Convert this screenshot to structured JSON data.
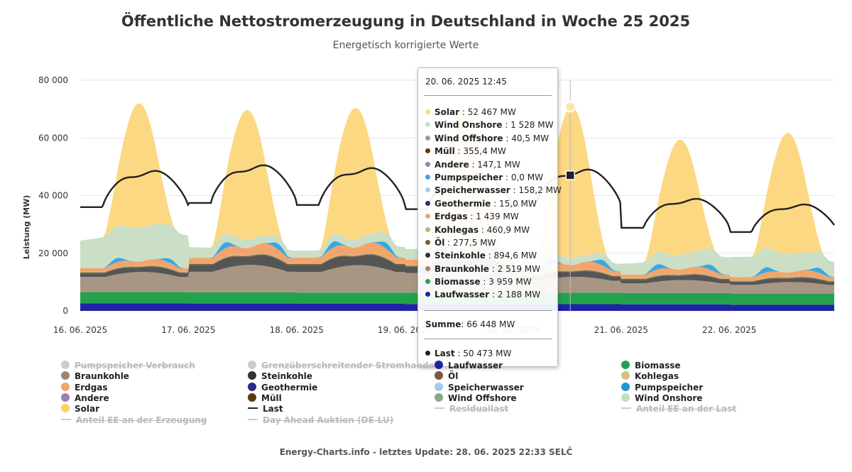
{
  "chart_data": {
    "type": "area",
    "title": "Öffentliche Nettostromerzeugung in Deutschland in Woche 25 2025",
    "subtitle": "Energetisch korrigierte Werte",
    "ylabel": "Leistung (MW)",
    "xlabel": "",
    "ylim": [
      0,
      80000
    ],
    "y_ticks": [
      0,
      20000,
      40000,
      60000,
      80000
    ],
    "y_tick_labels": [
      "0",
      "20 000",
      "40 000",
      "60 000",
      "80 000"
    ],
    "x_range_days": [
      0,
      6.97
    ],
    "x_tick_labels": [
      "16. 06. 2025",
      "17. 06. 2025",
      "18. 06. 2025",
      "19. 06. 2025",
      "20. 06. 2025",
      "21. 06. 2025",
      "22. 06. 2025"
    ],
    "grid": true,
    "legend_position": "bottom",
    "series": [
      {
        "name": "Laufwasser",
        "color": "#1f22a6",
        "values": [
          2600,
          2550,
          2450,
          2400,
          2350,
          2300,
          2150
        ]
      },
      {
        "name": "Biomasse",
        "color": "#23a24d",
        "values": [
          3900,
          3900,
          3900,
          3950,
          3950,
          3900,
          3850
        ]
      },
      {
        "name": "Braunkohle",
        "color": "#a89684",
        "values": [
          7000,
          9500,
          9500,
          9000,
          5500,
          4500,
          4000
        ]
      },
      {
        "name": "Steinkohle",
        "color": "#555555",
        "values": [
          2300,
          4300,
          4500,
          4000,
          2500,
          2200,
          1800
        ]
      },
      {
        "name": "Öl",
        "color": "#7a5a3a",
        "values": [
          300,
          300,
          300,
          300,
          300,
          300,
          300
        ]
      },
      {
        "name": "Kohlegas",
        "color": "#c8b080",
        "values": [
          450,
          450,
          450,
          450,
          450,
          450,
          450
        ]
      },
      {
        "name": "Erdgas",
        "color": "#f4a46a",
        "values": [
          2500,
          4200,
          4500,
          4200,
          3200,
          2700,
          2500
        ]
      },
      {
        "name": "Pumpspeicher",
        "color": "#3aa8e0",
        "values": [
          2500,
          3500,
          3500,
          3500,
          3300,
          3000,
          3000
        ]
      },
      {
        "name": "Wind Onshore",
        "color": "#cadfc6",
        "values": [
          12000,
          4000,
          4000,
          4000,
          4000,
          6000,
          7000
        ]
      },
      {
        "name": "Solar",
        "color": "#fdd882",
        "values": [
          43000,
          45000,
          45500,
          45000,
          52467,
          40000,
          42000
        ]
      }
    ],
    "last": {
      "name": "Last",
      "color": "#222222",
      "values": [
        50000,
        52000,
        51000,
        49000,
        50473,
        40000,
        38000
      ]
    },
    "tooltip": {
      "timestamp": "20. 06. 2025 12:45",
      "rows": [
        {
          "name": "Solar",
          "value": "52 467 MW",
          "color": "#fdd882"
        },
        {
          "name": "Wind Onshore",
          "value": "1 528 MW",
          "color": "#cadfc6"
        },
        {
          "name": "Wind Offshore",
          "value": "40,5 MW",
          "color": "#8aa882"
        },
        {
          "name": "Müll",
          "value": "355,4 MW",
          "color": "#5a3a14"
        },
        {
          "name": "Andere",
          "value": "147,1 MW",
          "color": "#9b7fb8"
        },
        {
          "name": "Pumpspeicher",
          "value": "0,0 MW",
          "color": "#3aa8e0"
        },
        {
          "name": "Speicherwasser",
          "value": "158,2 MW",
          "color": "#a8c8f0"
        },
        {
          "name": "Geothermie",
          "value": "15,0 MW",
          "color": "#2a2a88"
        },
        {
          "name": "Erdgas",
          "value": "1 439 MW",
          "color": "#f4a46a"
        },
        {
          "name": "Kohlegas",
          "value": "460,9 MW",
          "color": "#c8b080"
        },
        {
          "name": "Öl",
          "value": "277,5 MW",
          "color": "#7a5a3a"
        },
        {
          "name": "Steinkohle",
          "value": "894,6 MW",
          "color": "#333333"
        },
        {
          "name": "Braunkohle",
          "value": "2 519 MW",
          "color": "#a08470"
        },
        {
          "name": "Biomasse",
          "value": "3 959 MW",
          "color": "#23a24d"
        },
        {
          "name": "Laufwasser",
          "value": "2 188 MW",
          "color": "#1f22a6"
        }
      ],
      "sum_label": "Summe",
      "sum_value": "66 448 MW",
      "last_label": "Last",
      "last_value": "50 473 MW",
      "last_color": "#222222"
    },
    "legend": [
      {
        "name": "Pumpspeicher Verbrauch",
        "kind": "dot",
        "color": "#cccccc",
        "off": true
      },
      {
        "name": "Grenzüberschreitender Stromhandel",
        "kind": "dot",
        "color": "#cccccc",
        "off": true
      },
      {
        "name": "Laufwasser",
        "kind": "dot",
        "color": "#1f22a6",
        "off": false
      },
      {
        "name": "Biomasse",
        "kind": "dot",
        "color": "#23a24d",
        "off": false
      },
      {
        "name": "Braunkohle",
        "kind": "dot",
        "color": "#a08470",
        "off": false
      },
      {
        "name": "Steinkohle",
        "kind": "dot",
        "color": "#333333",
        "off": false
      },
      {
        "name": "Öl",
        "kind": "dot",
        "color": "#7a5a3a",
        "off": false
      },
      {
        "name": "Kohlegas",
        "kind": "dot",
        "color": "#d8be88",
        "off": false
      },
      {
        "name": "Erdgas",
        "kind": "dot",
        "color": "#f4a46a",
        "off": false
      },
      {
        "name": "Geothermie",
        "kind": "dot",
        "color": "#2a2a88",
        "off": false
      },
      {
        "name": "Speicherwasser",
        "kind": "dot",
        "color": "#a8c8f0",
        "off": false
      },
      {
        "name": "Pumpspeicher",
        "kind": "dot",
        "color": "#1e96d8",
        "off": false
      },
      {
        "name": "Andere",
        "kind": "dot",
        "color": "#9b7fb8",
        "off": false
      },
      {
        "name": "Müll",
        "kind": "dot",
        "color": "#5a3a14",
        "off": false
      },
      {
        "name": "Wind Offshore",
        "kind": "dot",
        "color": "#8aa882",
        "off": false
      },
      {
        "name": "Wind Onshore",
        "kind": "dot",
        "color": "#c4dec0",
        "off": false
      },
      {
        "name": "Solar",
        "kind": "dot",
        "color": "#fdd060",
        "off": false
      },
      {
        "name": "Last",
        "kind": "line",
        "color": "#222222",
        "off": false
      },
      {
        "name": "Residuallast",
        "kind": "line",
        "color": "#cccccc",
        "off": true
      },
      {
        "name": "Anteil EE an der Last",
        "kind": "line",
        "color": "#cccccc",
        "off": true
      },
      {
        "name": "Anteil EE an der Erzeugung",
        "kind": "line",
        "color": "#cccccc",
        "off": true
      },
      {
        "name": "Day Ahead Auktion (DE-LU)",
        "kind": "line",
        "color": "#cccccc",
        "off": true
      }
    ]
  },
  "footer": "Energy-Charts.info - letztes Update: 28. 06. 2025 22:33 SELČ"
}
